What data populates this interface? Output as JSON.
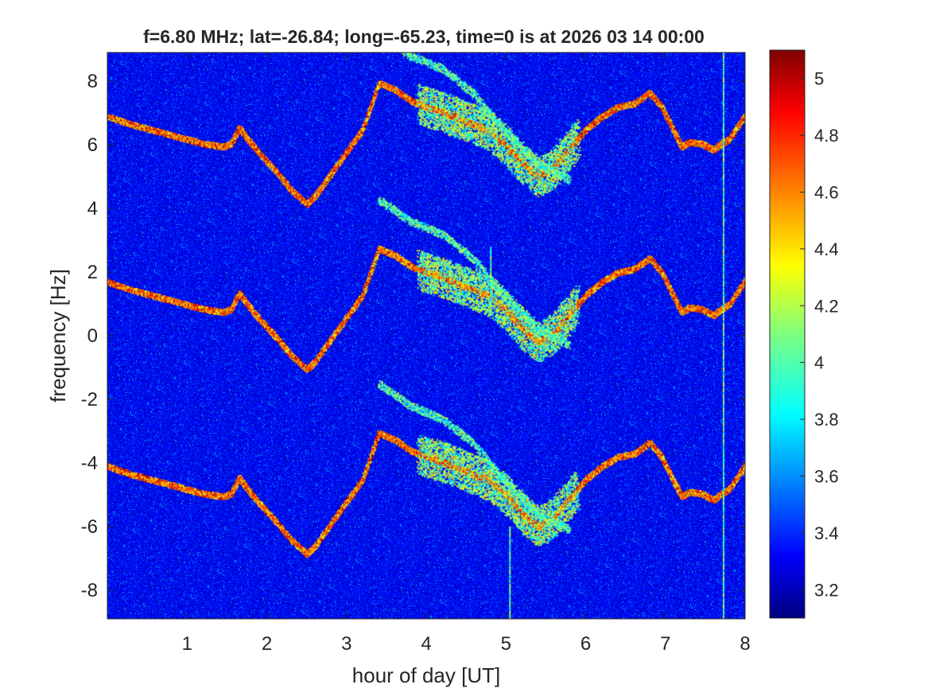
{
  "chart_data": {
    "type": "heatmap",
    "title": "f=6.80 MHz;  lat=-26.84; long=-65.23, time=0 is at 2026 03 14 00:00",
    "xlabel": "hour of day [UT]",
    "ylabel": "frequency [Hz]",
    "xlim": [
      0,
      8
    ],
    "ylim": [
      -8.9,
      8.9
    ],
    "x_ticks": [
      1,
      2,
      3,
      4,
      5,
      6,
      7,
      8
    ],
    "x_tick_labels": [
      "1",
      "2",
      "3",
      "4",
      "5",
      "6",
      "7",
      "8"
    ],
    "y_ticks": [
      8,
      6,
      4,
      2,
      0,
      -2,
      -4,
      -6,
      -8
    ],
    "y_tick_labels": [
      "8",
      "6",
      "4",
      "2",
      "0",
      "-2",
      "-4",
      "-6",
      "-8"
    ],
    "colorbar": {
      "colormap": "jet",
      "clim": [
        3.1,
        5.1
      ],
      "ticks": [
        5,
        4.8,
        4.6,
        4.4,
        4.2,
        4,
        3.8,
        3.6,
        3.4,
        3.2
      ],
      "tick_labels": [
        "5",
        "4.8",
        "4.6",
        "4.4",
        "4.2",
        "4",
        "3.8",
        "3.6",
        "3.4",
        "3.2"
      ]
    },
    "background_value": 3.25,
    "grid": false,
    "traces": [
      {
        "points": [
          [
            0.0,
            1.7
          ],
          [
            0.3,
            1.45
          ],
          [
            0.6,
            1.25
          ],
          [
            0.9,
            1.05
          ],
          [
            1.2,
            0.85
          ],
          [
            1.45,
            0.75
          ],
          [
            1.55,
            0.85
          ],
          [
            1.65,
            1.35
          ],
          [
            1.75,
            1.0
          ],
          [
            1.9,
            0.55
          ],
          [
            2.1,
            0.0
          ],
          [
            2.3,
            -0.6
          ],
          [
            2.5,
            -1.05
          ],
          [
            2.6,
            -0.8
          ],
          [
            2.8,
            -0.1
          ],
          [
            3.0,
            0.6
          ],
          [
            3.2,
            1.3
          ],
          [
            3.4,
            2.75
          ],
          [
            3.6,
            2.55
          ],
          [
            3.8,
            2.2
          ],
          [
            4.0,
            2.0
          ],
          [
            4.2,
            1.85
          ],
          [
            4.4,
            1.65
          ],
          [
            4.6,
            1.45
          ],
          [
            4.8,
            1.25
          ],
          [
            5.0,
            0.8
          ],
          [
            5.2,
            0.25
          ],
          [
            5.4,
            -0.2
          ],
          [
            5.6,
            0.1
          ],
          [
            5.8,
            0.7
          ],
          [
            6.0,
            1.3
          ],
          [
            6.2,
            1.7
          ],
          [
            6.4,
            2.0
          ],
          [
            6.6,
            2.1
          ],
          [
            6.8,
            2.45
          ],
          [
            6.95,
            2.0
          ],
          [
            7.1,
            1.25
          ],
          [
            7.2,
            0.75
          ],
          [
            7.3,
            0.9
          ],
          [
            7.45,
            0.85
          ],
          [
            7.6,
            0.65
          ],
          [
            7.7,
            0.85
          ],
          [
            7.8,
            1.0
          ],
          [
            8.0,
            1.75
          ]
        ],
        "shift": 5.2,
        "secondary": false
      },
      {
        "points": [
          [
            3.4,
            4.3
          ],
          [
            3.8,
            3.6
          ],
          [
            4.2,
            3.2
          ],
          [
            4.6,
            2.4
          ],
          [
            5.0,
            1.2
          ],
          [
            5.4,
            0.2
          ],
          [
            5.8,
            -0.3
          ]
        ],
        "shift": 5.2,
        "secondary": true
      }
    ],
    "harmonic_offsets": [
      0,
      5.2,
      -5.8
    ],
    "annotations": [
      {
        "x": 7.72,
        "y_from": -8.9,
        "y_to": 8.9,
        "kind": "vertical-stripe"
      },
      {
        "x": 5.04,
        "y_from": -8.9,
        "y_to": -6.0,
        "kind": "vertical-stripe"
      },
      {
        "x": 4.8,
        "y_from": 0.6,
        "y_to": 2.8,
        "kind": "vertical-stripe"
      }
    ]
  }
}
